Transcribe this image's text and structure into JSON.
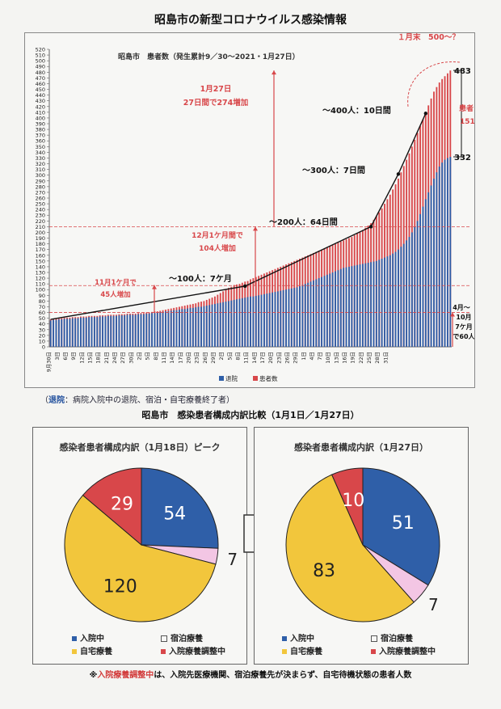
{
  "page_title": "昭島市の新型コロナウイルス感染情報",
  "colors": {
    "blue": "#2f5fa8",
    "red": "#d8474a",
    "yellow": "#f2c63c",
    "pink": "#f3c6e4",
    "black": "#111111"
  },
  "chart_data": [
    {
      "type": "bar",
      "title": "昭島市　患者数（発生累計9／30～2021・1月27日）",
      "ylim": [
        0,
        520
      ],
      "y_ticks": [
        "0",
        "10",
        "20",
        "30",
        "40",
        "50",
        "60",
        "70",
        "80",
        "90",
        "100",
        "110",
        "120",
        "130",
        "140",
        "150",
        "160",
        "170",
        "180",
        "190",
        "200",
        "210",
        "220",
        "230",
        "240",
        "250",
        "260",
        "270",
        "280",
        "290",
        "300",
        "310",
        "320",
        "330",
        "340",
        "350",
        "360",
        "370",
        "380",
        "390",
        "400",
        "410",
        "420",
        "430",
        "440",
        "450",
        "460",
        "470",
        "480",
        "490",
        "500",
        "510",
        "520"
      ],
      "x_tick_labels": [
        "9月30日",
        "3日",
        "6日",
        "9日",
        "12日",
        "15日",
        "18日",
        "21日",
        "24日",
        "27日",
        "30日",
        "2日",
        "5日",
        "8日",
        "11日",
        "14日",
        "17日",
        "20日",
        "23日",
        "26日",
        "29日",
        "2日",
        "5日",
        "8日",
        "11日",
        "14日",
        "17日",
        "20日",
        "23日",
        "26日",
        "29日",
        "1日",
        "4日",
        "7日",
        "10日",
        "13日",
        "16日",
        "19日",
        "22日",
        "25日",
        "28日",
        "31日"
      ],
      "legend": [
        "退院",
        "患者数"
      ],
      "legend_position": "bottom",
      "series": [
        {
          "name": "患者数",
          "values": [
            48,
            49,
            49,
            50,
            50,
            51,
            51,
            51,
            52,
            52,
            52,
            53,
            53,
            53,
            54,
            54,
            54,
            54,
            55,
            55,
            55,
            56,
            56,
            56,
            56,
            57,
            57,
            57,
            58,
            58,
            58,
            58,
            59,
            59,
            59,
            60,
            60,
            61,
            62,
            62,
            63,
            64,
            65,
            66,
            67,
            68,
            69,
            70,
            71,
            72,
            73,
            74,
            75,
            76,
            78,
            79,
            80,
            82,
            84,
            86,
            88,
            91,
            94,
            97,
            100,
            103,
            105,
            108,
            109,
            110,
            112,
            114,
            115,
            118,
            120,
            122,
            124,
            126,
            128,
            130,
            132,
            134,
            136,
            138,
            140,
            142,
            144,
            146,
            148,
            150,
            152,
            154,
            156,
            158,
            160,
            162,
            164,
            166,
            168,
            170,
            172,
            174,
            176,
            178,
            180,
            182,
            184,
            186,
            188,
            190,
            192,
            195,
            198,
            201,
            204,
            208,
            212,
            216,
            222,
            228,
            235,
            242,
            250,
            258,
            266,
            275,
            284,
            294,
            305,
            316,
            327,
            338,
            350,
            362,
            374,
            386,
            398,
            410,
            422,
            434,
            446,
            454,
            462,
            468,
            473,
            478,
            483
          ]
        },
        {
          "name": "退院",
          "values": [
            46,
            47,
            47,
            48,
            48,
            49,
            49,
            49,
            50,
            50,
            50,
            51,
            51,
            51,
            52,
            52,
            52,
            52,
            53,
            53,
            53,
            54,
            54,
            54,
            54,
            55,
            55,
            55,
            56,
            56,
            56,
            56,
            57,
            57,
            57,
            58,
            58,
            59,
            59,
            60,
            60,
            61,
            62,
            62,
            63,
            64,
            64,
            65,
            66,
            66,
            67,
            68,
            68,
            69,
            70,
            70,
            71,
            72,
            73,
            74,
            75,
            76,
            77,
            78,
            79,
            80,
            81,
            82,
            83,
            84,
            85,
            86,
            87,
            88,
            88,
            89,
            90,
            91,
            92,
            93,
            94,
            95,
            96,
            97,
            98,
            99,
            100,
            101,
            102,
            103,
            104,
            106,
            108,
            110,
            112,
            114,
            116,
            118,
            120,
            122,
            124,
            126,
            128,
            130,
            132,
            134,
            136,
            138,
            139,
            140,
            141,
            142,
            143,
            144,
            145,
            146,
            147,
            148,
            149,
            150,
            152,
            154,
            156,
            158,
            160,
            163,
            166,
            170,
            175,
            180,
            186,
            192,
            200,
            210,
            220,
            232,
            245,
            258,
            270,
            282,
            294,
            305,
            315,
            322,
            327,
            330,
            332
          ]
        }
      ],
      "annotations": {
        "jan_end": "１月末　500～？",
        "v483": "483",
        "v332": "332",
        "patients": [
          "患者",
          "151"
        ],
        "jan27": [
          "1月27日",
          "27日間で274増加"
        ],
        "s400": "～400人：10日間",
        "s300": "～300人：7日間",
        "s200": "～200人：64日間",
        "s100": "～100人：7ケ月",
        "dec": [
          "12月1ケ月間で",
          "104人増加"
        ],
        "nov": [
          "11月1ケ月で",
          "45人増加"
        ],
        "apr": [
          "4月～",
          "10月",
          "7ケ月",
          "で60人"
        ]
      }
    },
    {
      "type": "pie",
      "title": "感染者患者構成内訳（1月18日）ピーク",
      "labels": [
        "入院中",
        "宿泊療養",
        "自宅療養",
        "入院療養調整中"
      ],
      "values": [
        54,
        7,
        120,
        29
      ]
    },
    {
      "type": "pie",
      "title": "感染者患者構成内訳（1月27日）",
      "labels": [
        "入院中",
        "宿泊療養",
        "自宅療養",
        "入院療養調整中"
      ],
      "values": [
        51,
        7,
        83,
        10
      ]
    }
  ],
  "note": {
    "prefix": "（",
    "term": "退院",
    "text": "：病院入院中の退院、宿泊・自宅療養終了者）"
  },
  "subtitle": "昭島市　感染患者構成内訳比較（1月1日／1月27日）",
  "footnote": {
    "prefix": "※",
    "term": "入院療養調整中",
    "text": "は、入院先医療機関、宿泊療養先が決まらず、自宅待機状態の患者人数"
  }
}
